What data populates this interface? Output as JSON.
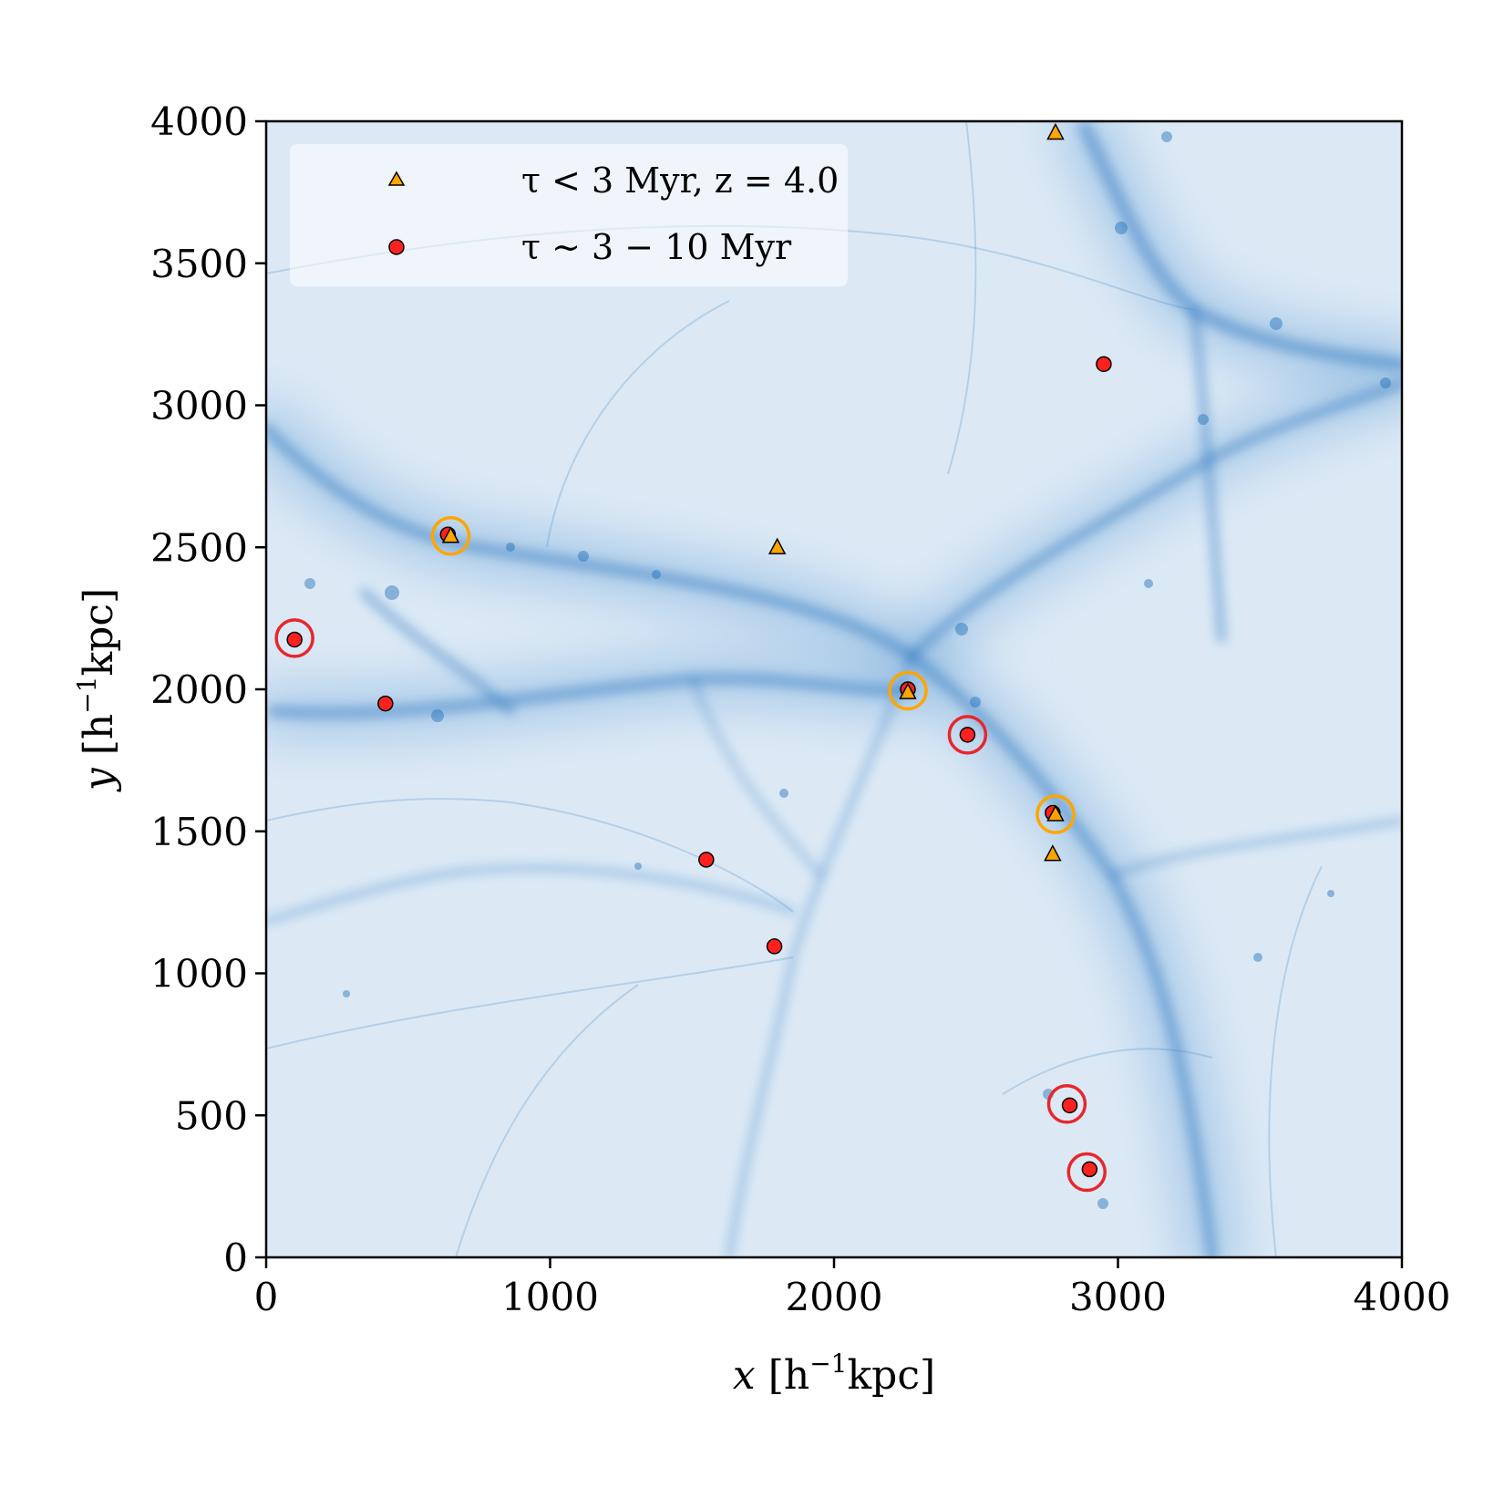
{
  "chart_data": {
    "type": "scatter",
    "title": "",
    "xlabel": {
      "prefix": "x",
      "unit_a": " [h",
      "sup": "−1",
      "unit_b": "kpc]"
    },
    "ylabel": {
      "prefix": "y",
      "unit_a": " [h",
      "sup": "−1",
      "unit_b": "kpc]"
    },
    "xlim": [
      0,
      4000
    ],
    "ylim": [
      0,
      4000
    ],
    "xticks": [
      0,
      1000,
      2000,
      3000,
      4000
    ],
    "yticks": [
      0,
      500,
      1000,
      1500,
      2000,
      2500,
      3000,
      3500,
      4000
    ],
    "xtick_labels": [
      "0",
      "1000",
      "2000",
      "3000",
      "4000"
    ],
    "ytick_labels": [
      "0",
      "500",
      "1000",
      "1500",
      "2000",
      "2500",
      "3000",
      "3500",
      "4000"
    ],
    "background": "projected dark-matter density field (cosmic web)",
    "legend_position": "upper-left",
    "legend": [
      {
        "label": "τ < 3 Myr, z = 4.0",
        "marker": "triangle"
      },
      {
        "label": "τ ∼ 3 − 10 Myr",
        "marker": "circle"
      }
    ],
    "series": [
      {
        "name": "τ < 3 Myr, z = 4.0",
        "marker": "triangle",
        "color": "#ffa500",
        "points": [
          {
            "x": 650,
            "y": 2540
          },
          {
            "x": 1800,
            "y": 2500
          },
          {
            "x": 2780,
            "y": 3960
          },
          {
            "x": 2260,
            "y": 1990
          },
          {
            "x": 2780,
            "y": 1560
          },
          {
            "x": 2770,
            "y": 1420
          }
        ]
      },
      {
        "name": "τ ∼ 3 − 10 Myr",
        "marker": "circle",
        "color": "#ff2020",
        "points": [
          {
            "x": 640,
            "y": 2545
          },
          {
            "x": 100,
            "y": 2175
          },
          {
            "x": 420,
            "y": 1950
          },
          {
            "x": 2260,
            "y": 2000
          },
          {
            "x": 2470,
            "y": 1840
          },
          {
            "x": 2770,
            "y": 1565
          },
          {
            "x": 1550,
            "y": 1400
          },
          {
            "x": 1790,
            "y": 1095
          },
          {
            "x": 2950,
            "y": 3145
          },
          {
            "x": 2830,
            "y": 535
          },
          {
            "x": 2900,
            "y": 310
          }
        ]
      },
      {
        "name": "highlight rings (orange)",
        "marker": "ring",
        "color": "#ffa500",
        "points": [
          {
            "x": 650,
            "y": 2540
          },
          {
            "x": 2260,
            "y": 1995
          },
          {
            "x": 2780,
            "y": 1560
          }
        ]
      },
      {
        "name": "highlight rings (red)",
        "marker": "ring",
        "color": "#e8262b",
        "points": [
          {
            "x": 100,
            "y": 2180
          },
          {
            "x": 2470,
            "y": 1840
          },
          {
            "x": 2820,
            "y": 540
          },
          {
            "x": 2890,
            "y": 300
          }
        ]
      }
    ]
  }
}
